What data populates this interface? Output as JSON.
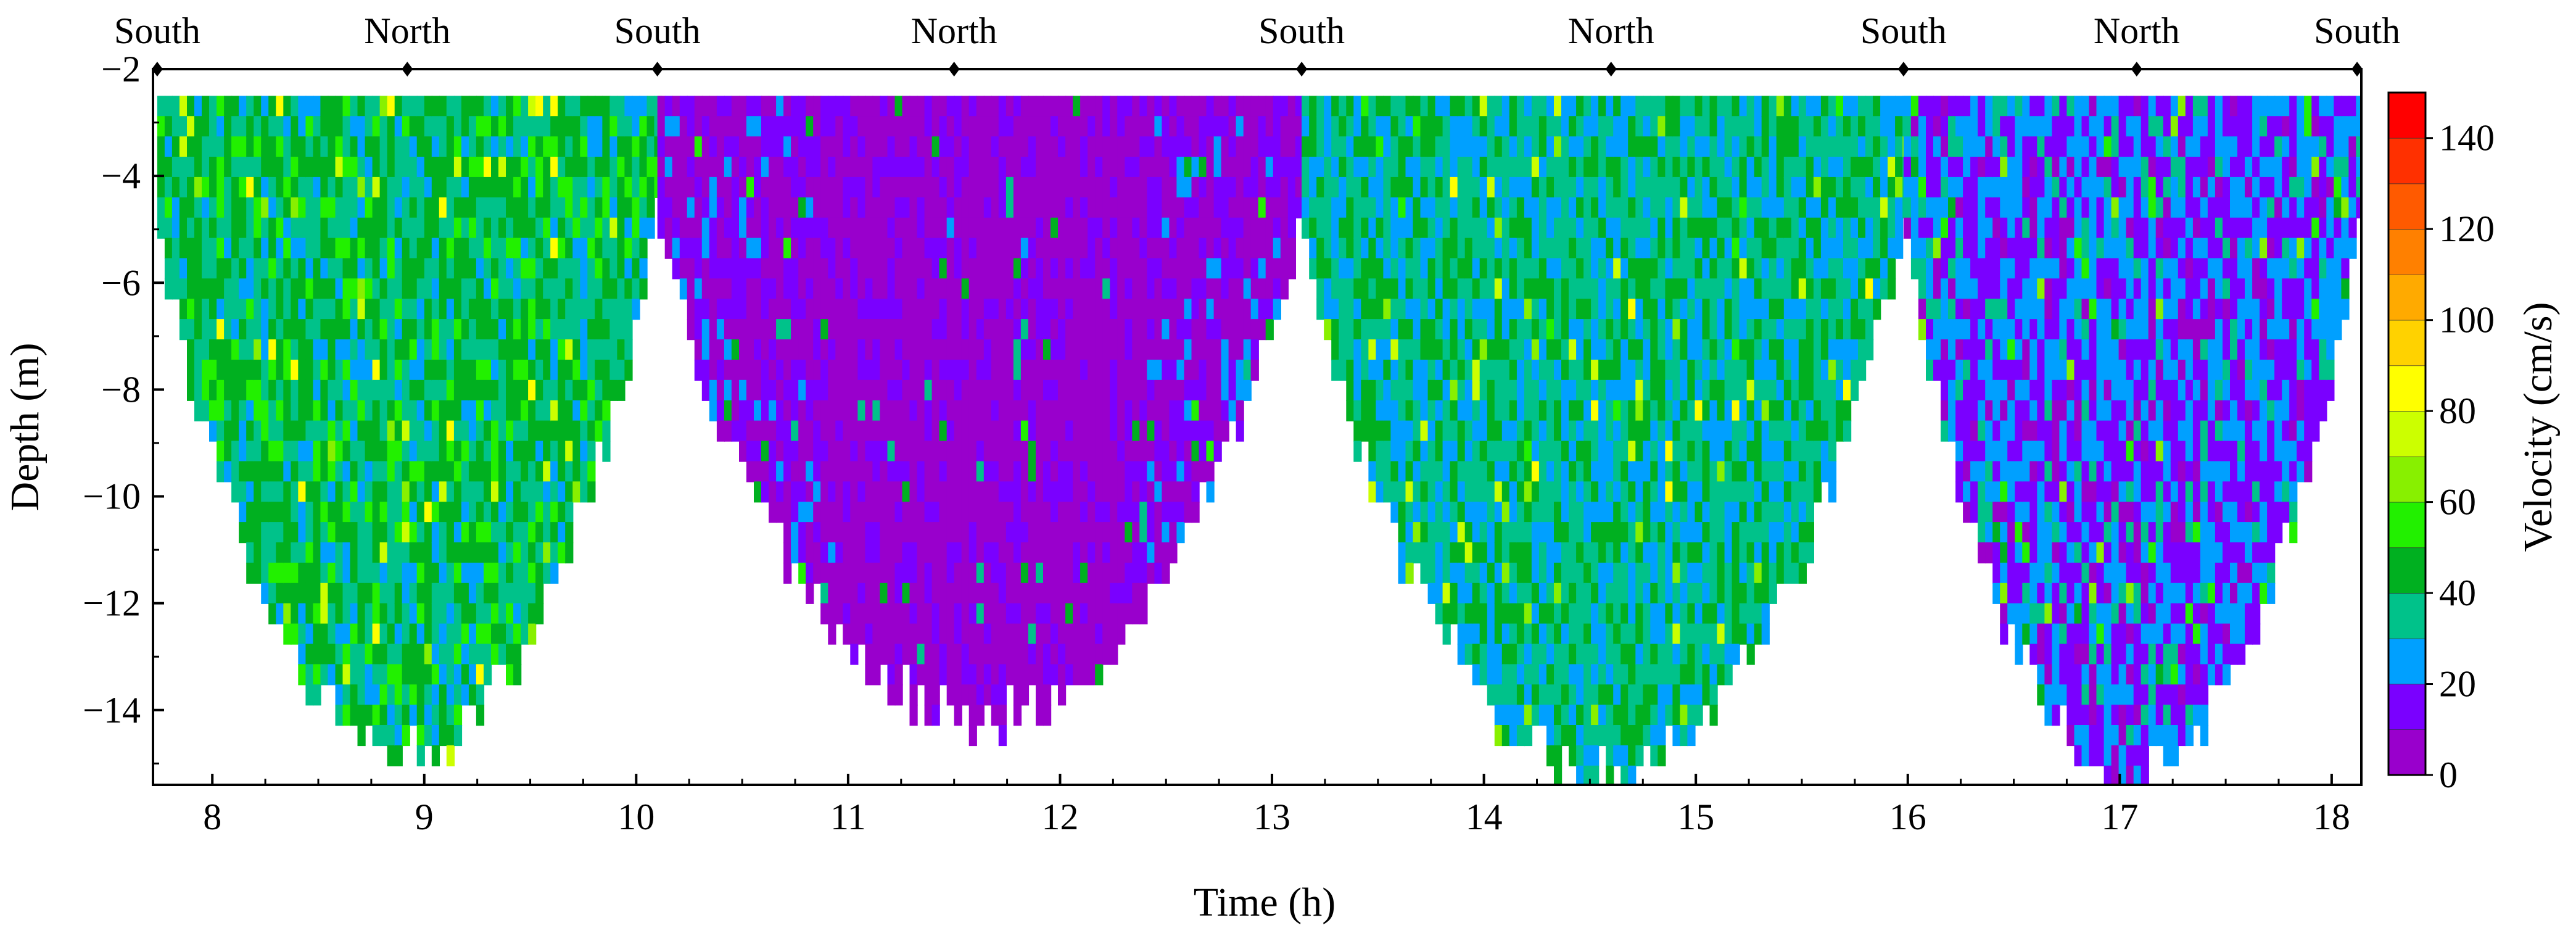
{
  "chart_data": {
    "type": "heatmap",
    "xlabel": "Time (h)",
    "ylabel": "Depth (m)",
    "colorbar_label": "Velocity (cm/s)",
    "xlim": [
      7.72,
      18.14
    ],
    "ylim": [
      -15.4,
      -2.0
    ],
    "x_ticks": [
      8,
      9,
      10,
      11,
      12,
      13,
      14,
      15,
      16,
      17,
      18
    ],
    "y_ticks": [
      -2,
      -4,
      -6,
      -8,
      -10,
      -12,
      -14
    ],
    "colorbar": {
      "range": [
        0,
        150
      ],
      "ticks": [
        0,
        20,
        40,
        60,
        80,
        100,
        120,
        140
      ],
      "levels": [
        0,
        10,
        20,
        30,
        40,
        50,
        60,
        70,
        80,
        90,
        100,
        110,
        120,
        130,
        140,
        150
      ],
      "colors": [
        "#9900cc",
        "#7a00ff",
        "#00a0ff",
        "#00c28a",
        "#00b020",
        "#22f000",
        "#88f000",
        "#ccff00",
        "#ffff00",
        "#ffd200",
        "#ffaa00",
        "#ff8000",
        "#ff5a00",
        "#ff3000",
        "#ff0000"
      ]
    },
    "transect_markers": [
      {
        "time": 7.74,
        "label": "South"
      },
      {
        "time": 8.92,
        "label": "North"
      },
      {
        "time": 10.1,
        "label": "South"
      },
      {
        "time": 11.5,
        "label": "North"
      },
      {
        "time": 13.14,
        "label": "South"
      },
      {
        "time": 14.6,
        "label": "North"
      },
      {
        "time": 15.98,
        "label": "South"
      },
      {
        "time": 17.08,
        "label": "North"
      },
      {
        "time": 18.12,
        "label": "South"
      }
    ],
    "transects": [
      {
        "start": 7.74,
        "end": 10.1,
        "max_depth": -14.6,
        "mean_velocity": 40
      },
      {
        "start": 10.1,
        "end": 13.14,
        "max_depth": -14.0,
        "mean_velocity": 10
      },
      {
        "start": 13.14,
        "end": 15.98,
        "max_depth": -15.0,
        "mean_velocity": 35
      },
      {
        "start": 15.98,
        "end": 18.12,
        "max_depth": -15.1,
        "mean_velocity": 20
      }
    ]
  }
}
